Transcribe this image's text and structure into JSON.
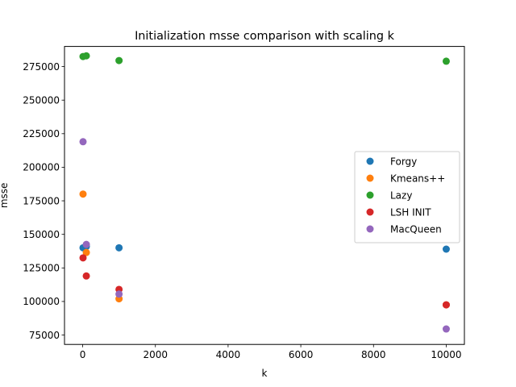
{
  "chart_data": {
    "type": "scatter",
    "title": "Initialization msse comparison with scaling k",
    "xlabel": "k",
    "ylabel": "msse",
    "xlim": [
      -500,
      10500
    ],
    "ylim": [
      68000,
      290000
    ],
    "xticks": [
      0,
      2000,
      4000,
      6000,
      8000,
      10000
    ],
    "xtick_labels": [
      "0",
      "2000",
      "4000",
      "6000",
      "8000",
      "10000"
    ],
    "yticks": [
      75000,
      100000,
      125000,
      150000,
      175000,
      200000,
      225000,
      250000,
      275000
    ],
    "ytick_labels": [
      "75000",
      "100000",
      "125000",
      "150000",
      "175000",
      "200000",
      "225000",
      "250000",
      "275000"
    ],
    "grid": false,
    "legend_position": "right",
    "series": [
      {
        "name": "Forgy",
        "color": "#1f77b4",
        "points": [
          [
            10,
            140000
          ],
          [
            100,
            141000
          ],
          [
            1000,
            140000
          ],
          [
            10000,
            139000
          ]
        ]
      },
      {
        "name": "Kmeans++",
        "color": "#ff7f0e",
        "points": [
          [
            10,
            180000
          ],
          [
            100,
            136500
          ],
          [
            1000,
            102000
          ],
          [
            10000,
            97500
          ]
        ]
      },
      {
        "name": "Lazy",
        "color": "#2ca02c",
        "points": [
          [
            10,
            282500
          ],
          [
            100,
            283000
          ],
          [
            1000,
            279500
          ],
          [
            10000,
            279000
          ]
        ]
      },
      {
        "name": "LSH INIT",
        "color": "#d62728",
        "points": [
          [
            10,
            132500
          ],
          [
            100,
            119000
          ],
          [
            1000,
            109000
          ],
          [
            10000,
            97500
          ]
        ]
      },
      {
        "name": "MacQueen",
        "color": "#9467bd",
        "points": [
          [
            10,
            219000
          ],
          [
            100,
            142500
          ],
          [
            1000,
            105500
          ],
          [
            10000,
            79500
          ]
        ]
      }
    ]
  }
}
